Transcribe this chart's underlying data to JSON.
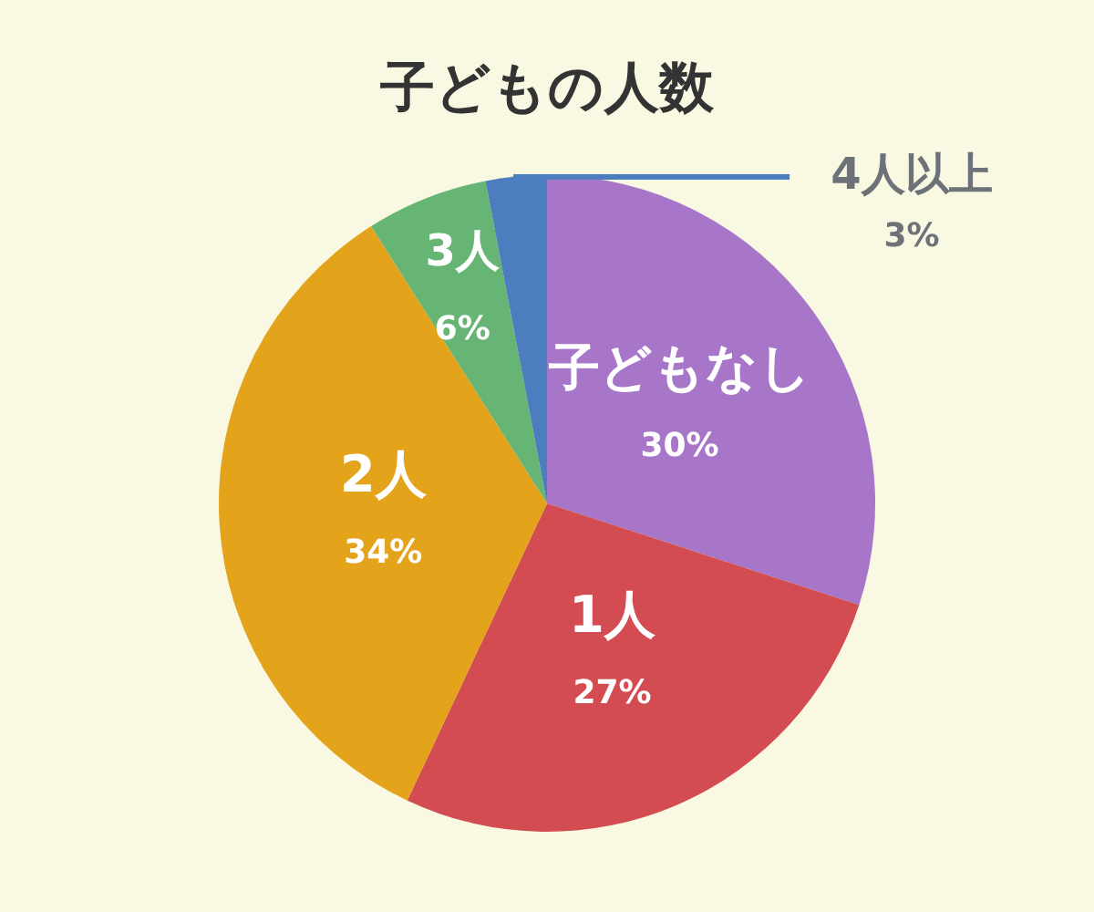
{
  "chart_data": {
    "type": "pie",
    "title": "子どもの人数",
    "categories": [
      "子どもなし",
      "1人",
      "2人",
      "3人",
      "4人以上"
    ],
    "values": [
      30,
      27,
      34,
      6,
      3
    ],
    "colors": [
      "#a776c8",
      "#d24c52",
      "#e3a41b",
      "#66b574",
      "#4c7ebf"
    ],
    "value_labels": [
      "30%",
      "27%",
      "34%",
      "6%",
      "3%"
    ]
  }
}
